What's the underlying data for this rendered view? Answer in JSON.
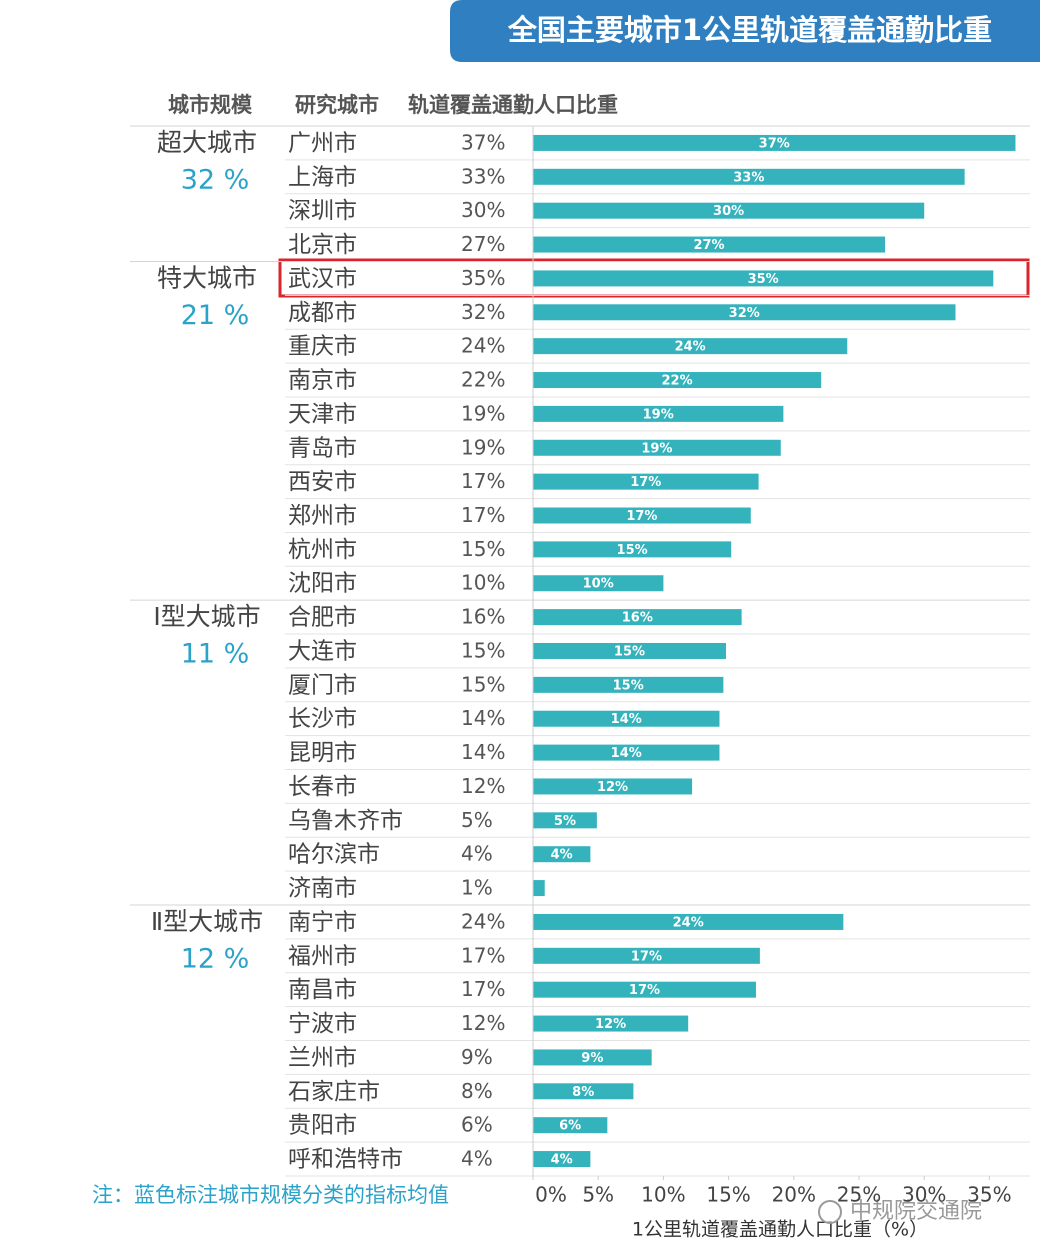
{
  "chart_data": {
    "type": "bar",
    "orientation": "horizontal",
    "title": "全国主要城市1公里轨道覆盖通勤比重",
    "column_headers": [
      "城市规模",
      "研究城市",
      "轨道覆盖通勤人口比重"
    ],
    "color": "#35b3bd",
    "mean_color": "#2ba2c9",
    "groups": [
      {
        "name": "超大城市",
        "mean": "32 %",
        "categories": [
          "广州市",
          "上海市",
          "深圳市",
          "北京市"
        ],
        "values": [
          37.0,
          33.1,
          30.0,
          27.0
        ],
        "value_labels": [
          "37%",
          "33%",
          "30%",
          "27%"
        ]
      },
      {
        "name": "特大城市",
        "mean": "21 %",
        "categories": [
          "武汉市",
          "成都市",
          "重庆市",
          "南京市",
          "天津市",
          "青岛市",
          "西安市",
          "郑州市",
          "杭州市",
          "沈阳市"
        ],
        "values": [
          35.3,
          32.4,
          24.1,
          22.1,
          19.2,
          19.0,
          17.3,
          16.7,
          15.2,
          10.0
        ],
        "value_labels": [
          "35%",
          "32%",
          "24%",
          "22%",
          "19%",
          "19%",
          "17%",
          "17%",
          "15%",
          "10%"
        ]
      },
      {
        "name": "Ⅰ型大城市",
        "mean": "11 %",
        "categories": [
          "合肥市",
          "大连市",
          "厦门市",
          "长沙市",
          "昆明市",
          "长春市",
          "乌鲁木齐市",
          "哈尔滨市",
          "济南市"
        ],
        "values": [
          16.0,
          14.8,
          14.6,
          14.3,
          14.3,
          12.2,
          4.9,
          4.4,
          0.9
        ],
        "value_labels": [
          "16%",
          "15%",
          "15%",
          "14%",
          "14%",
          "12%",
          "5%",
          "4%",
          "1%"
        ]
      },
      {
        "name": "Ⅱ型大城市",
        "mean": "12 %",
        "categories": [
          "南宁市",
          "福州市",
          "南昌市",
          "宁波市",
          "兰州市",
          "石家庄市",
          "贵阳市",
          "呼和浩特市"
        ],
        "values": [
          23.8,
          17.4,
          17.1,
          11.9,
          9.1,
          7.7,
          5.7,
          4.4
        ],
        "value_labels": [
          "24%",
          "17%",
          "17%",
          "12%",
          "9%",
          "8%",
          "6%",
          "4%"
        ]
      }
    ],
    "xlim": [
      0,
      37.5
    ],
    "xticks": [
      {
        "value": 0,
        "label": "0%"
      },
      {
        "value": 5,
        "label": "5%"
      },
      {
        "value": 10,
        "label": "10%"
      },
      {
        "value": 15,
        "label": "15%"
      },
      {
        "value": 20,
        "label": "20%"
      },
      {
        "value": 25,
        "label": "25%"
      },
      {
        "value": 30,
        "label": "30%"
      },
      {
        "value": 35,
        "label": "35%"
      }
    ],
    "x_label": "1公里轨道覆盖通勤人口比重（%）",
    "note": "注：蓝色标注城市规模分类的指标均值",
    "watermark": "中规院交通院"
  }
}
